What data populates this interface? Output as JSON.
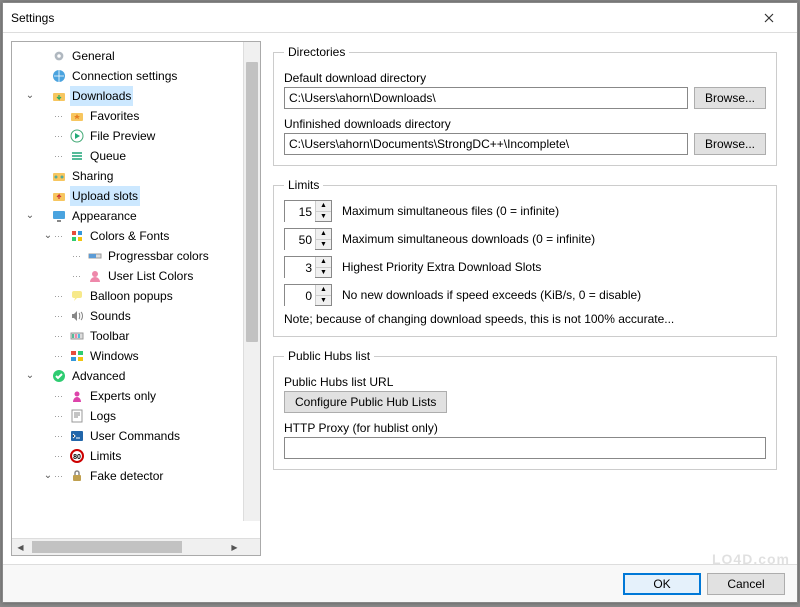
{
  "window": {
    "title": "Settings"
  },
  "tree": {
    "items": [
      {
        "label": "General",
        "depth": 1,
        "icon": "gear",
        "exp": ""
      },
      {
        "label": "Connection settings",
        "depth": 1,
        "icon": "globe",
        "exp": ""
      },
      {
        "label": "Downloads",
        "depth": 1,
        "icon": "folder-down",
        "exp": "v",
        "sel": true
      },
      {
        "label": "Favorites",
        "depth": 2,
        "icon": "star-folder",
        "exp": ""
      },
      {
        "label": "File Preview",
        "depth": 2,
        "icon": "play",
        "exp": ""
      },
      {
        "label": "Queue",
        "depth": 2,
        "icon": "queue",
        "exp": ""
      },
      {
        "label": "Sharing",
        "depth": 1,
        "icon": "share",
        "exp": ""
      },
      {
        "label": "Upload slots",
        "depth": 1,
        "icon": "upload",
        "exp": "",
        "sel": true
      },
      {
        "label": "Appearance",
        "depth": 1,
        "icon": "monitor",
        "exp": "v"
      },
      {
        "label": "Colors & Fonts",
        "depth": 2,
        "icon": "palette",
        "exp": "v"
      },
      {
        "label": "Progressbar colors",
        "depth": 3,
        "icon": "progress",
        "exp": ""
      },
      {
        "label": "User List Colors",
        "depth": 3,
        "icon": "user",
        "exp": ""
      },
      {
        "label": "Balloon popups",
        "depth": 2,
        "icon": "balloon",
        "exp": ""
      },
      {
        "label": "Sounds",
        "depth": 2,
        "icon": "sound",
        "exp": ""
      },
      {
        "label": "Toolbar",
        "depth": 2,
        "icon": "toolbar",
        "exp": ""
      },
      {
        "label": "Windows",
        "depth": 2,
        "icon": "windows",
        "exp": ""
      },
      {
        "label": "Advanced",
        "depth": 1,
        "icon": "check",
        "exp": "v"
      },
      {
        "label": "Experts only",
        "depth": 2,
        "icon": "expert",
        "exp": ""
      },
      {
        "label": "Logs",
        "depth": 2,
        "icon": "log",
        "exp": ""
      },
      {
        "label": "User Commands",
        "depth": 2,
        "icon": "cmd",
        "exp": ""
      },
      {
        "label": "Limits",
        "depth": 2,
        "icon": "limit",
        "exp": ""
      },
      {
        "label": "Fake detector",
        "depth": 2,
        "icon": "lock",
        "exp": "v"
      }
    ]
  },
  "directories": {
    "legend": "Directories",
    "default_label": "Default download directory",
    "default_path": "C:\\Users\\ahorn\\Downloads\\",
    "unfinished_label": "Unfinished downloads directory",
    "unfinished_path": "C:\\Users\\ahorn\\Documents\\StrongDC++\\Incomplete\\",
    "browse_label": "Browse..."
  },
  "limits": {
    "legend": "Limits",
    "rows": [
      {
        "value": "15",
        "label": "Maximum simultaneous files (0 = infinite)"
      },
      {
        "value": "50",
        "label": "Maximum simultaneous downloads (0 = infinite)"
      },
      {
        "value": "3",
        "label": "Highest Priority Extra Download Slots"
      },
      {
        "value": "0",
        "label": "No new downloads if speed exceeds (KiB/s, 0 = disable)"
      }
    ],
    "note": "Note; because of changing download speeds, this is not 100% accurate..."
  },
  "hubs": {
    "legend": "Public Hubs list",
    "url_label": "Public Hubs list URL",
    "configure_label": "Configure Public Hub Lists",
    "proxy_label": "HTTP Proxy (for hublist only)",
    "proxy_value": ""
  },
  "footer": {
    "ok": "OK",
    "cancel": "Cancel"
  },
  "watermark": "LO4D.com",
  "colors": {
    "selection": "#cce8ff",
    "border": "#888888",
    "fieldset": "#cccccc",
    "button_bg": "#e1e1e1",
    "button_border": "#adadad",
    "accent": "#0078d7"
  }
}
